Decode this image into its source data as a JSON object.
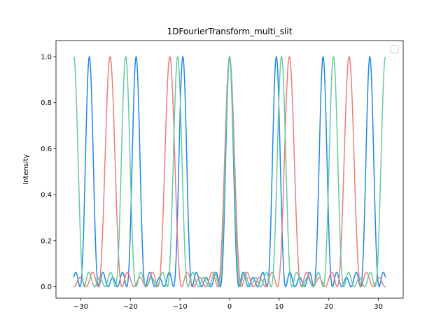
{
  "chart_data": {
    "type": "line",
    "title": "1DFourierTransform_multi_slit",
    "xlabel": "",
    "ylabel": "Intensity",
    "xlim": [
      -35,
      35
    ],
    "ylim": [
      -0.05,
      1.07
    ],
    "x_range": [
      -31.416,
      31.416
    ],
    "xticks": [
      -30,
      -20,
      -10,
      0,
      10,
      20,
      30
    ],
    "xtick_labels": [
      "−30",
      "−20",
      "−10",
      "0",
      "10",
      "20",
      "30"
    ],
    "yticks": [
      0.0,
      0.2,
      0.4,
      0.6,
      0.8,
      1.0
    ],
    "ytick_labels": [
      "0.0",
      "0.2",
      "0.4",
      "0.6",
      "0.8",
      "1.0"
    ],
    "grid": false,
    "legend": {
      "placement": "top-right",
      "entries": []
    },
    "series": [
      {
        "color": "#1e88e5",
        "slits": 5,
        "peak_spacing": 9.4248,
        "peaks_x": [
          -28.27,
          -18.85,
          -9.42,
          0,
          9.42,
          18.85,
          28.27
        ],
        "peak_value": 1.0,
        "sidelobe_max": 0.055
      },
      {
        "color": "#ee7b7b",
        "slits": 5,
        "peak_spacing": 12.05,
        "peaks_x": [
          -24.1,
          -12.05,
          0,
          12.05,
          24.1
        ],
        "peak_value": 1.0,
        "sidelobe_max": 0.055
      },
      {
        "color": "#66c9a0",
        "slits": 5,
        "peak_spacing": 10.472,
        "peaks_x": [
          -31.42,
          -20.94,
          -10.47,
          0,
          10.47,
          20.94,
          31.42
        ],
        "peak_value": 1.0,
        "sidelobe_max": 0.055
      }
    ]
  }
}
